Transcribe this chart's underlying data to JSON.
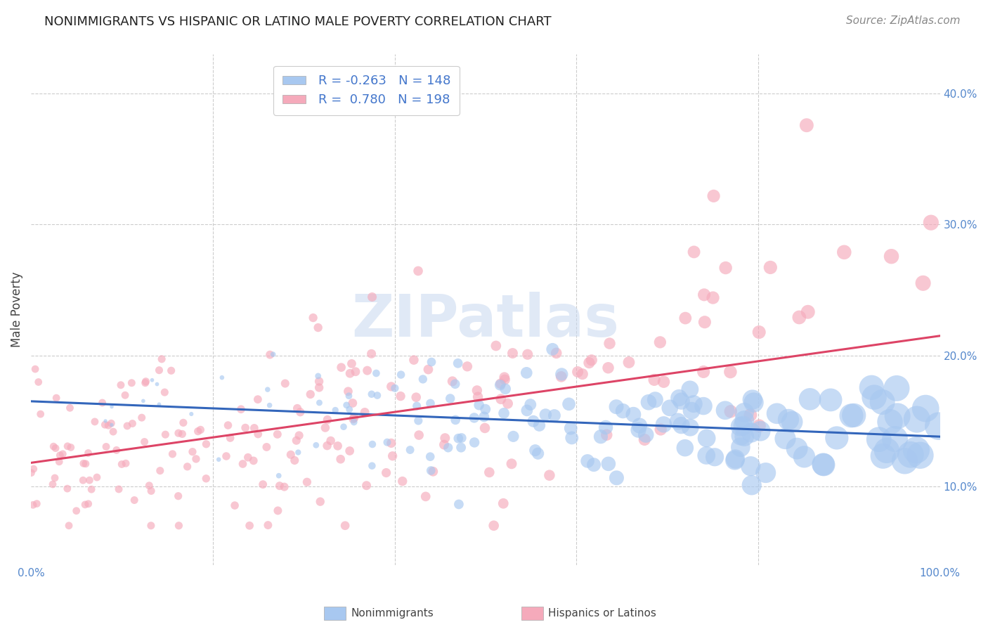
{
  "title": "NONIMMIGRANTS VS HISPANIC OR LATINO MALE POVERTY CORRELATION CHART",
  "source": "Source: ZipAtlas.com",
  "ylabel": "Male Poverty",
  "x_min": 0.0,
  "x_max": 1.0,
  "y_min": 0.04,
  "y_max": 0.43,
  "y_ticks": [
    0.1,
    0.2,
    0.3,
    0.4
  ],
  "y_tick_labels": [
    "10.0%",
    "20.0%",
    "30.0%",
    "40.0%"
  ],
  "blue_color": "#A8C8F0",
  "pink_color": "#F5AABB",
  "blue_line_color": "#3366BB",
  "pink_line_color": "#DD4466",
  "legend_blue_label": "Nonimmigrants",
  "legend_pink_label": "Hispanics or Latinos",
  "r_blue": "-0.263",
  "n_blue": "148",
  "r_pink": "0.780",
  "n_pink": "198",
  "watermark": "ZIPatlas",
  "watermark_color": "#C8D8F0",
  "grid_color": "#CCCCCC",
  "background_color": "#FFFFFF",
  "title_fontsize": 13,
  "axis_label_fontsize": 12,
  "tick_fontsize": 11,
  "legend_fontsize": 13,
  "source_fontsize": 11,
  "blue_trend_start_y": 0.165,
  "blue_trend_end_y": 0.138,
  "pink_trend_start_y": 0.118,
  "pink_trend_end_y": 0.215
}
